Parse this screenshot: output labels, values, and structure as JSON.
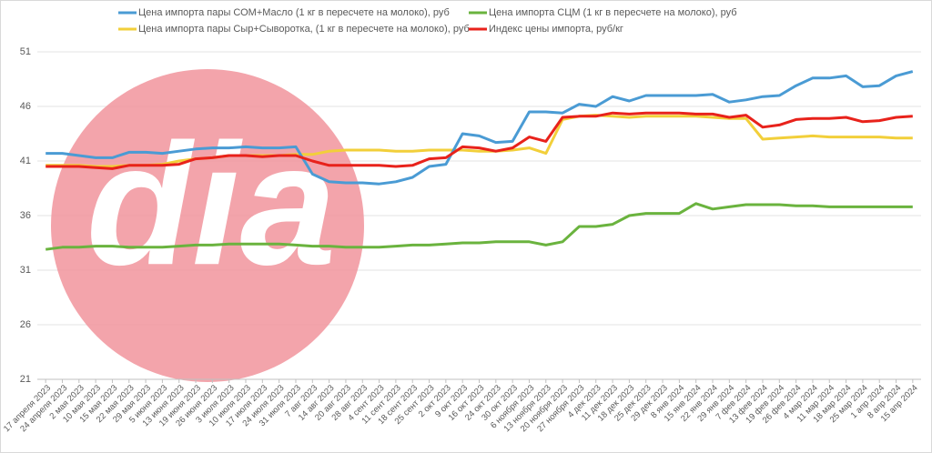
{
  "chart_data": {
    "type": "line",
    "watermark": "dia",
    "categories": [
      "17 апреля 2023",
      "24 апреля 2023",
      "2 мая 2023",
      "10 мая 2023",
      "15 мая 2023",
      "22 мая 2023",
      "29 мая 2023",
      "5 июня 2023",
      "13 июня 2023",
      "19 июня 2023",
      "26 июня 2023",
      "3 июля 2023",
      "10 июля 2023",
      "17 июля 2023",
      "24 июля 2023",
      "31 июля 2023",
      "7 авг 2023",
      "14 авг 2023",
      "20 авг 2023",
      "28 авг 2023",
      "4 сент 2023",
      "11 сент 2023",
      "18 сент 2023",
      "25 сент 2023",
      "2 окт 2023",
      "9 окт 2023",
      "16 окт 2023",
      "24 окт 2023",
      "30 окт 2023",
      "6 ноября 2023",
      "13 ноября 2023",
      "20 ноября 2023",
      "27 ноября 2023",
      "4 дек 2023",
      "11 дек 2023",
      "18 дек 2023",
      "25 дек 2023",
      "29 дек 2023",
      "8 янв 2024",
      "15 янв 2024",
      "22 янв 2024",
      "29 янв 2024",
      "7 фев 2024",
      "13 фев 2024",
      "19 фев 2024",
      "26 фев 2024",
      "4 мар 2024",
      "11 мар 2024",
      "18 мар 2024",
      "25 мар 2024",
      "1 апр 2024",
      "8 апр 2024",
      "15 апр 2024"
    ],
    "series": [
      {
        "name": "Цена импорта пары СОМ+Масло (1 кг в пересчете на молоко), руб",
        "color": "#4a9bd4",
        "values": [
          41.7,
          41.7,
          41.5,
          41.3,
          41.3,
          41.8,
          41.8,
          41.7,
          41.9,
          42.1,
          42.2,
          42.2,
          42.3,
          42.2,
          42.2,
          42.3,
          39.8,
          39.1,
          39.0,
          39.0,
          38.9,
          39.1,
          39.5,
          40.5,
          40.7,
          43.5,
          43.3,
          42.7,
          42.8,
          45.5,
          45.5,
          45.4,
          46.2,
          46.0,
          46.9,
          46.5,
          47.0,
          47.0,
          47.0,
          47.0,
          47.1,
          46.4,
          46.6,
          46.9,
          47.0,
          47.9,
          48.6,
          48.6,
          48.8,
          47.8,
          47.9,
          48.8,
          49.2
        ]
      },
      {
        "name": "Цена импорта СЦМ (1 кг в пересчете на молоко), руб",
        "color": "#6ab33e",
        "values": [
          32.9,
          33.1,
          33.1,
          33.2,
          33.2,
          33.1,
          33.1,
          33.1,
          33.2,
          33.3,
          33.3,
          33.4,
          33.4,
          33.4,
          33.4,
          33.3,
          33.2,
          33.2,
          33.1,
          33.1,
          33.1,
          33.2,
          33.3,
          33.3,
          33.4,
          33.5,
          33.5,
          33.6,
          33.6,
          33.6,
          33.3,
          33.6,
          35.0,
          35.0,
          35.2,
          36.0,
          36.2,
          36.2,
          36.2,
          37.1,
          36.6,
          36.8,
          37.0,
          37.0,
          37.0,
          36.9,
          36.9,
          36.8,
          36.8,
          36.8,
          36.8,
          36.8,
          36.8
        ]
      },
      {
        "name": "Цена импорта пары Сыр+Сыворотка, (1 кг в пересчете на молоко), руб",
        "color": "#f2cf3a",
        "values": [
          40.6,
          40.6,
          40.6,
          40.5,
          40.5,
          40.6,
          40.6,
          40.7,
          41.0,
          41.2,
          41.3,
          41.5,
          41.5,
          41.5,
          41.5,
          41.6,
          41.6,
          41.9,
          42.0,
          42.0,
          42.0,
          41.9,
          41.9,
          42.0,
          42.0,
          42.0,
          41.9,
          41.9,
          42.0,
          42.2,
          41.7,
          44.8,
          45.1,
          45.2,
          45.1,
          45.0,
          45.1,
          45.1,
          45.1,
          45.1,
          45.0,
          44.9,
          44.9,
          43.0,
          43.1,
          43.2,
          43.3,
          43.2,
          43.2,
          43.2,
          43.2,
          43.1,
          43.1
        ]
      },
      {
        "name": "Индекс цены импорта, руб/кг",
        "color": "#e8221b",
        "values": [
          40.5,
          40.5,
          40.5,
          40.4,
          40.3,
          40.6,
          40.6,
          40.6,
          40.7,
          41.2,
          41.3,
          41.5,
          41.5,
          41.4,
          41.5,
          41.5,
          41.0,
          40.6,
          40.6,
          40.6,
          40.6,
          40.5,
          40.6,
          41.2,
          41.3,
          42.3,
          42.2,
          41.9,
          42.2,
          43.2,
          42.8,
          45.0,
          45.1,
          45.1,
          45.4,
          45.3,
          45.4,
          45.4,
          45.4,
          45.3,
          45.3,
          45.0,
          45.2,
          44.1,
          44.3,
          44.8,
          44.9,
          44.9,
          45.0,
          44.6,
          44.7,
          45.0,
          45.1
        ]
      }
    ],
    "ylim": [
      21,
      51
    ],
    "yticks": [
      21,
      26,
      31,
      36,
      41,
      46,
      51
    ],
    "grid": true
  }
}
